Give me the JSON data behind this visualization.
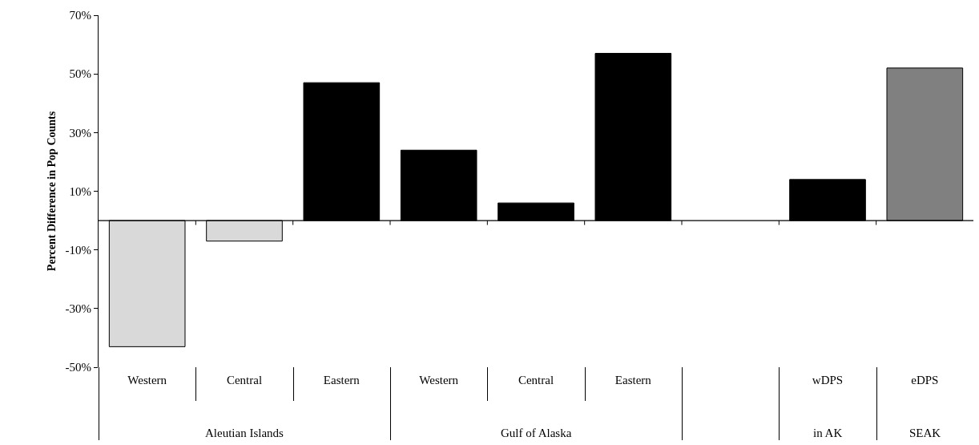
{
  "chart_data": {
    "type": "bar",
    "ylabel": "Percent Difference in Pop Counts",
    "categories": [
      "Western",
      "Central",
      "Eastern",
      "Western",
      "Central",
      "Eastern",
      null,
      "wDPS",
      "eDPS"
    ],
    "values": [
      -43,
      -7,
      47,
      24,
      6,
      57,
      null,
      14,
      52
    ],
    "colors": [
      "#d9d9d9",
      "#d9d9d9",
      "#000000",
      "#000000",
      "#000000",
      "#000000",
      "#000000",
      "#000000",
      "#808080"
    ],
    "ylim": [
      -50,
      70
    ],
    "yticks": [
      {
        "value": -50,
        "label": "-50%"
      },
      {
        "value": -30,
        "label": "-30%"
      },
      {
        "value": -10,
        "label": "-10%"
      },
      {
        "value": 10,
        "label": "10%"
      },
      {
        "value": 30,
        "label": "30%"
      },
      {
        "value": 50,
        "label": "50%"
      },
      {
        "value": 70,
        "label": "70%"
      }
    ],
    "grid": false,
    "legend": false,
    "annotations": [
      "Aleutian Islands",
      "Gulf of Alaska",
      "in AK",
      "SEAK"
    ]
  }
}
